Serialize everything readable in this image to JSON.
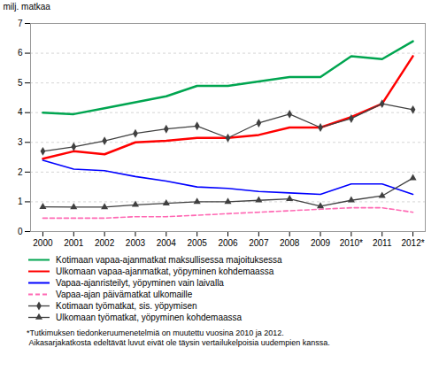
{
  "chart_data": {
    "type": "line",
    "x": [
      2000,
      2001,
      2002,
      2003,
      2004,
      2005,
      2006,
      2007,
      2008,
      2009,
      2010,
      2011,
      2012
    ],
    "xlim": [
      1999.6,
      2012.4
    ],
    "xticks": [
      2000,
      2001,
      2002,
      2003,
      2004,
      2005,
      2006,
      2007,
      2008,
      2009,
      {
        "value": 2010,
        "label": "2010*"
      },
      2011,
      {
        "value": 2012,
        "label": "2012*"
      }
    ],
    "ylabel": "milj. matkaa",
    "ylim": [
      0,
      7
    ],
    "yticks": [
      0,
      1,
      2,
      3,
      4,
      5,
      6,
      7
    ],
    "grid": true,
    "legend": "bottom",
    "series": [
      {
        "name": "Kotimaan vapaa-ajanmatkat maksullisessa majoituksessa",
        "color": "#00A550",
        "values": [
          4.0,
          3.95,
          4.15,
          4.35,
          4.55,
          4.9,
          4.9,
          5.05,
          5.2,
          5.2,
          5.9,
          5.8,
          6.4
        ]
      },
      {
        "name": "Ulkomaan vapaa-ajanmatkat, yöpyminen kohdemaassa",
        "color": "#FF0000",
        "values": [
          2.45,
          2.7,
          2.6,
          3.0,
          3.05,
          3.15,
          3.15,
          3.25,
          3.5,
          3.5,
          3.85,
          4.3,
          5.9
        ]
      },
      {
        "name": "Vapaa-ajanristeilyt, yöpyminen vain laivalla",
        "color": "#0000FF",
        "values": [
          2.4,
          2.1,
          2.05,
          1.85,
          1.7,
          1.5,
          1.45,
          1.35,
          1.3,
          1.25,
          1.6,
          1.6,
          1.25
        ]
      },
      {
        "name": "Vapaa-ajan päivämatkat ulkomaille",
        "color": "#FF69B4",
        "line_style": "dashed",
        "values": [
          0.45,
          0.45,
          0.45,
          0.5,
          0.5,
          0.55,
          0.6,
          0.65,
          0.7,
          0.75,
          0.8,
          0.8,
          0.65
        ]
      },
      {
        "name": "Kotimaan työmatkat, sis. yöpymisen",
        "color": "#404040",
        "marker": "diamond",
        "values": [
          2.7,
          2.85,
          3.05,
          3.3,
          3.45,
          3.55,
          3.15,
          3.65,
          3.95,
          3.5,
          3.8,
          4.3,
          4.1
        ]
      },
      {
        "name": "Ulkomaan työmatkat, yöpyminen kohdemaassa",
        "color": "#404040",
        "marker": "triangle",
        "values": [
          0.83,
          0.82,
          0.82,
          0.9,
          0.95,
          1.0,
          1.0,
          1.05,
          1.1,
          0.85,
          1.05,
          1.2,
          1.8
        ]
      }
    ],
    "annotations": [
      "*Tutkimuksen tiedonkeruumenetelmiä on muutettu vuosina 2010 ja 2012.",
      " Aikasarjakatkosta edeltävät luvut eivät ole täysin vertailukelpoisia uudempien kanssa."
    ]
  }
}
